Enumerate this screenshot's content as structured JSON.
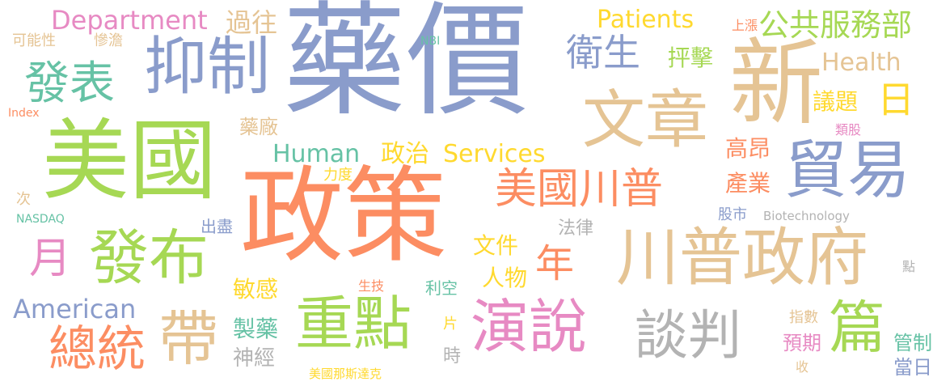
{
  "palette": {
    "blue": "#8a9ccb",
    "green": "#a6d854",
    "orange": "#fc8d62",
    "tan": "#e5c494",
    "teal": "#66c2a5",
    "pink": "#e78ac3",
    "yellow": "#ffd92f",
    "gray": "#b3b3b3"
  },
  "words": [
    {
      "id": "w-yaojia",
      "text": "藥價",
      "color": "blue"
    },
    {
      "id": "w-zhengce",
      "text": "政策",
      "color": "orange"
    },
    {
      "id": "w-meiguo",
      "text": "美國",
      "color": "green"
    },
    {
      "id": "w-xin",
      "text": "新",
      "color": "tan"
    },
    {
      "id": "w-wenzhang",
      "text": "文章",
      "color": "tan"
    },
    {
      "id": "w-yizhi",
      "text": "抑制",
      "color": "blue"
    },
    {
      "id": "w-maoyi",
      "text": "貿易",
      "color": "blue"
    },
    {
      "id": "w-chuanpu-zhengfu",
      "text": "川普政府",
      "color": "tan"
    },
    {
      "id": "w-fabu",
      "text": "發布",
      "color": "green"
    },
    {
      "id": "w-zhongdian",
      "text": "重點",
      "color": "green"
    },
    {
      "id": "w-yanshuo",
      "text": "演說",
      "color": "pink"
    },
    {
      "id": "w-tanpan",
      "text": "談判",
      "color": "gray"
    },
    {
      "id": "w-dai",
      "text": "帶",
      "color": "tan"
    },
    {
      "id": "w-pian",
      "text": "篇",
      "color": "green"
    },
    {
      "id": "w-zongtong",
      "text": "總統",
      "color": "orange"
    },
    {
      "id": "w-meiguo-chuanpu",
      "text": "美國川普",
      "color": "orange"
    },
    {
      "id": "w-fabiao",
      "text": "發表",
      "color": "teal"
    },
    {
      "id": "w-weisheng",
      "text": "衛生",
      "color": "blue"
    },
    {
      "id": "w-yue",
      "text": "月",
      "color": "pink"
    },
    {
      "id": "w-nian",
      "text": "年",
      "color": "orange"
    },
    {
      "id": "w-ri",
      "text": "日",
      "color": "yellow"
    },
    {
      "id": "w-gonggong",
      "text": "公共服務部",
      "color": "green"
    },
    {
      "id": "w-department",
      "text": "Department",
      "color": "pink"
    },
    {
      "id": "w-human",
      "text": "Human",
      "color": "teal"
    },
    {
      "id": "w-services",
      "text": "Services",
      "color": "yellow"
    },
    {
      "id": "w-american",
      "text": "American",
      "color": "blue"
    },
    {
      "id": "w-health",
      "text": "Health",
      "color": "tan"
    },
    {
      "id": "w-patients",
      "text": "Patients",
      "color": "yellow"
    },
    {
      "id": "w-zhengzhi",
      "text": "政治",
      "color": "yellow"
    },
    {
      "id": "w-guowang",
      "text": "過往",
      "color": "tan"
    },
    {
      "id": "w-pengji",
      "text": "抨擊",
      "color": "green"
    },
    {
      "id": "w-yiti",
      "text": "議題",
      "color": "yellow"
    },
    {
      "id": "w-gaoang",
      "text": "高昂",
      "color": "orange"
    },
    {
      "id": "w-chanye",
      "text": "產業",
      "color": "orange"
    },
    {
      "id": "w-wenjian",
      "text": "文件",
      "color": "yellow"
    },
    {
      "id": "w-renwu",
      "text": "人物",
      "color": "yellow"
    },
    {
      "id": "w-mingan",
      "text": "敏感",
      "color": "yellow"
    },
    {
      "id": "w-zhiyao",
      "text": "製藥",
      "color": "teal"
    },
    {
      "id": "w-shenjing",
      "text": "神經",
      "color": "gray"
    },
    {
      "id": "w-guanzhi",
      "text": "管制",
      "color": "teal"
    },
    {
      "id": "w-dangri",
      "text": "當日",
      "color": "blue"
    },
    {
      "id": "w-yuqi",
      "text": "預期",
      "color": "pink"
    },
    {
      "id": "w-yaochang",
      "text": "藥廠",
      "color": "tan"
    },
    {
      "id": "w-keneng",
      "text": "可能性",
      "color": "tan"
    },
    {
      "id": "w-candan",
      "text": "慘澹",
      "color": "tan"
    },
    {
      "id": "w-lidu",
      "text": "力度",
      "color": "yellow"
    },
    {
      "id": "w-chujin",
      "text": "出盡",
      "color": "blue"
    },
    {
      "id": "w-falv",
      "text": "法律",
      "color": "gray"
    },
    {
      "id": "w-gushi",
      "text": "股市",
      "color": "blue"
    },
    {
      "id": "w-likong",
      "text": "利空",
      "color": "teal"
    },
    {
      "id": "w-shengji",
      "text": "生技",
      "color": "orange"
    },
    {
      "id": "w-pian2",
      "text": "片",
      "color": "yellow"
    },
    {
      "id": "w-shi",
      "text": "時",
      "color": "gray"
    },
    {
      "id": "w-zhishu",
      "text": "指數",
      "color": "tan"
    },
    {
      "id": "w-shou",
      "text": "收",
      "color": "tan"
    },
    {
      "id": "w-nasdaq-zh",
      "text": "美國那斯達克",
      "color": "yellow"
    },
    {
      "id": "w-shangzhang",
      "text": "上漲",
      "color": "orange"
    },
    {
      "id": "w-leigu",
      "text": "類股",
      "color": "pink"
    },
    {
      "id": "w-dian",
      "text": "點",
      "color": "gray"
    },
    {
      "id": "w-ci",
      "text": "次",
      "color": "tan"
    },
    {
      "id": "w-nbi",
      "text": "NBI",
      "color": "teal"
    },
    {
      "id": "w-index",
      "text": "Index",
      "color": "orange"
    },
    {
      "id": "w-nasdaq",
      "text": "NASDAQ",
      "color": "teal"
    },
    {
      "id": "w-biotech",
      "text": "Biotechnology",
      "color": "gray"
    }
  ]
}
